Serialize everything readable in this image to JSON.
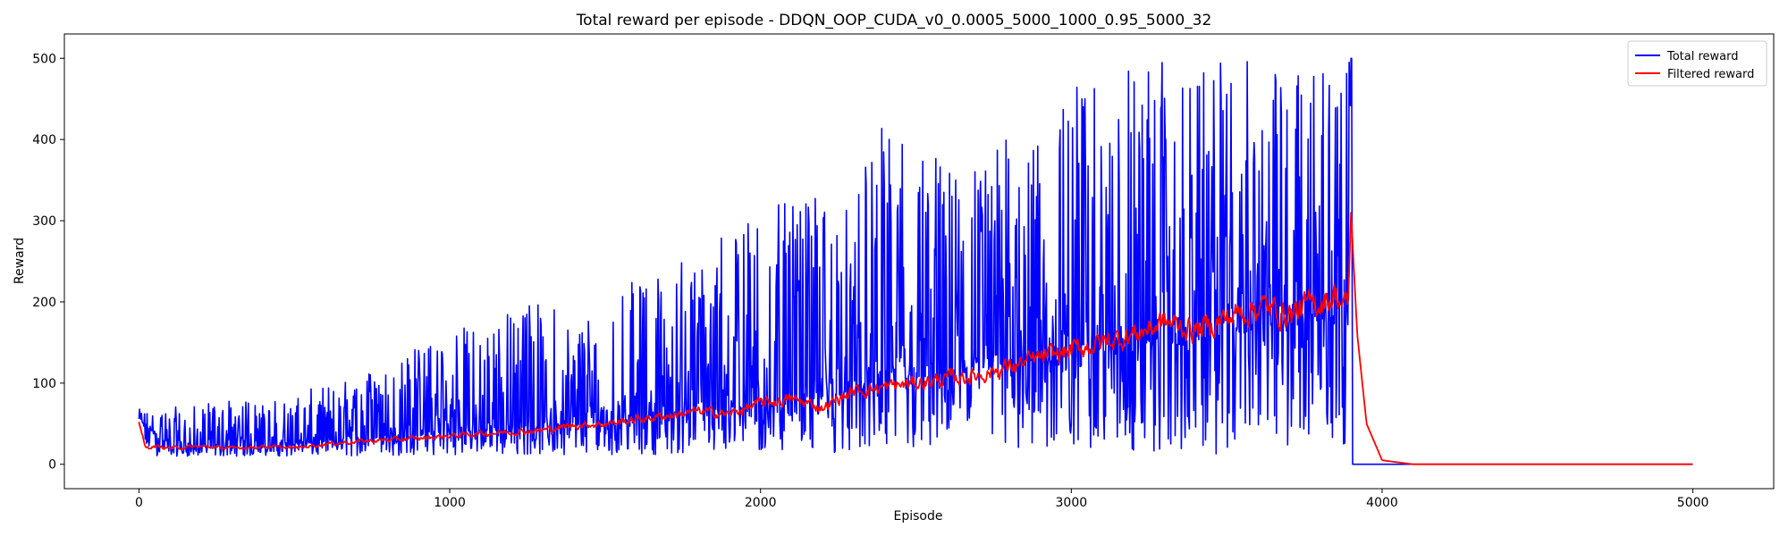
{
  "chart_data": {
    "type": "line",
    "title": "Total reward per episode - DDQN_OOP_CUDA_v0_0.0005_5000_1000_0.95_5000_32",
    "xlabel": "Episode",
    "ylabel": "Reward",
    "xlim": [
      -240,
      5260
    ],
    "ylim": [
      -30,
      530
    ],
    "xticks": [
      0,
      1000,
      2000,
      3000,
      4000,
      5000
    ],
    "yticks": [
      0,
      100,
      200,
      300,
      400,
      500
    ],
    "grid": false,
    "legend_position": "top-right",
    "series": [
      {
        "name": "Total reward",
        "color": "#0000ff",
        "x": [
          0,
          100,
          200,
          300,
          400,
          500,
          600,
          700,
          800,
          900,
          1000,
          1100,
          1200,
          1300,
          1400,
          1500,
          1600,
          1700,
          1800,
          1900,
          2000,
          2100,
          2200,
          2300,
          2400,
          2500,
          2600,
          2700,
          2800,
          2900,
          3000,
          3100,
          3200,
          3300,
          3400,
          3500,
          3600,
          3700,
          3800,
          3850,
          3890,
          3900,
          3905,
          4000,
          5000
        ],
        "y": [
          55,
          18,
          20,
          22,
          20,
          24,
          28,
          30,
          32,
          35,
          38,
          42,
          40,
          45,
          48,
          50,
          55,
          60,
          65,
          65,
          70,
          75,
          80,
          90,
          100,
          105,
          110,
          115,
          120,
          125,
          130,
          135,
          140,
          145,
          150,
          160,
          165,
          170,
          175,
          180,
          200,
          500,
          0,
          0,
          0
        ],
        "range_top": [
          68,
          70,
          75,
          78,
          80,
          85,
          100,
          110,
          120,
          150,
          160,
          185,
          190,
          205,
          200,
          215,
          230,
          240,
          260,
          300,
          330,
          320,
          330,
          340,
          425,
          400,
          380,
          390,
          420,
          395,
          480,
          460,
          500,
          500,
          480,
          500,
          500,
          500,
          500,
          500,
          500,
          500,
          0,
          0,
          0
        ],
        "range_bottom": [
          10,
          10,
          10,
          10,
          10,
          10,
          10,
          10,
          10,
          10,
          12,
          12,
          12,
          12,
          12,
          12,
          12,
          12,
          12,
          12,
          12,
          12,
          12,
          12,
          12,
          12,
          12,
          12,
          12,
          12,
          12,
          12,
          12,
          12,
          12,
          12,
          12,
          12,
          12,
          12,
          30,
          0,
          0,
          0,
          0
        ]
      },
      {
        "name": "Filtered reward",
        "color": "#ff0000",
        "x": [
          0,
          20,
          50,
          100,
          200,
          300,
          400,
          500,
          600,
          700,
          800,
          900,
          1000,
          1100,
          1200,
          1300,
          1400,
          1500,
          1600,
          1700,
          1800,
          1900,
          2000,
          2100,
          2200,
          2300,
          2400,
          2500,
          2600,
          2700,
          2800,
          2900,
          3000,
          3100,
          3200,
          3300,
          3400,
          3500,
          3600,
          3700,
          3800,
          3850,
          3890,
          3900,
          3920,
          3950,
          4000,
          4100,
          5000
        ],
        "y": [
          55,
          20,
          22,
          20,
          22,
          20,
          22,
          20,
          25,
          28,
          30,
          32,
          35,
          38,
          40,
          42,
          48,
          50,
          55,
          60,
          65,
          62,
          75,
          80,
          70,
          90,
          95,
          100,
          105,
          110,
          120,
          130,
          140,
          150,
          160,
          175,
          165,
          180,
          195,
          185,
          200,
          210,
          190,
          310,
          160,
          50,
          5,
          0,
          0
        ]
      }
    ]
  }
}
